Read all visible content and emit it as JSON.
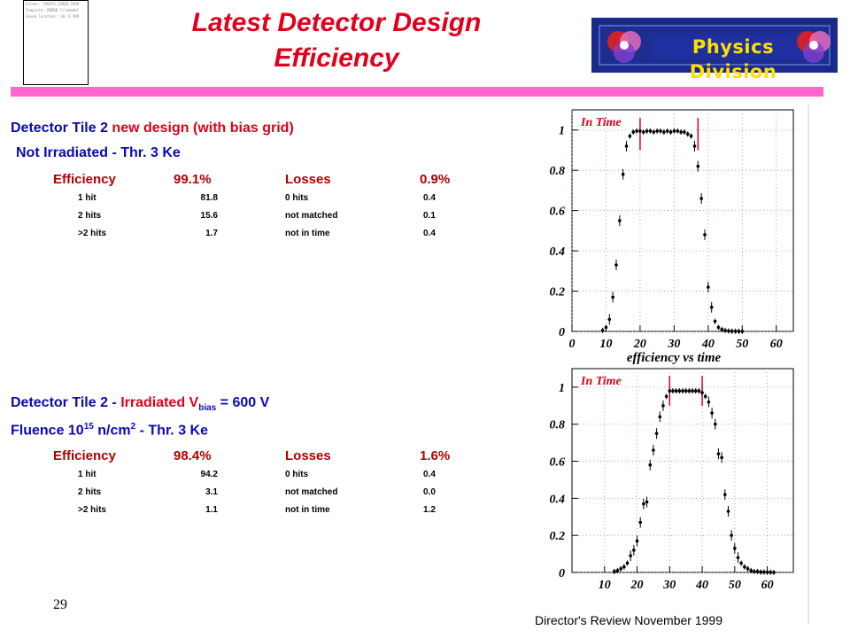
{
  "slide": {
    "title_line1": "Latest Detector Design",
    "title_line2": "Efficiency",
    "page_number": "29",
    "footer": "Director's Review November 1999",
    "logo_text": "Physics Division",
    "thumbnail_lines": [
      "Folder: TARATS_ISRED_1999",
      "Template: RB8BB Tilemodel",
      "Saved location: (B) 0.999"
    ]
  },
  "section1": {
    "heading_prefix": "Detector Tile 2 ",
    "heading_red": "new design (with bias grid)",
    "subheading": "Not Irradiated - Thr. 3 Ke",
    "eff_label": "Efficiency",
    "eff_value": "99.1%",
    "loss_label": "Losses",
    "loss_value": "0.9%",
    "rows": [
      {
        "a": "1 hit",
        "b": "81.8",
        "c": "0 hits",
        "d": "0.4"
      },
      {
        "a": "2 hits",
        "b": "15.6",
        "c": "not matched",
        "d": "0.1"
      },
      {
        "a": ">2 hits",
        "b": "1.7",
        "c": "not in time",
        "d": "0.4"
      }
    ]
  },
  "section2": {
    "heading_prefix": "Detector Tile 2 - ",
    "heading_red": "Irradiated V",
    "heading_sub": "bias",
    "heading_suffix": " = 600 V",
    "fluence_prefix": "Fluence 10",
    "fluence_sup": "15",
    "fluence_mid": " n/cm",
    "fluence_sup2": "2",
    "fluence_suffix": " - Thr. 3 Ke",
    "eff_label": "Efficiency",
    "eff_value": "98.4%",
    "loss_label": "Losses",
    "loss_value": "1.6%",
    "rows": [
      {
        "a": "1 hit",
        "b": "94.2",
        "c": "0 hits",
        "d": "0.4"
      },
      {
        "a": "2 hits",
        "b": "3.1",
        "c": "not matched",
        "d": "0.0"
      },
      {
        "a": ">2 hits",
        "b": "1.1",
        "c": "not in time",
        "d": "1.2"
      }
    ]
  },
  "chart_data": [
    {
      "type": "scatter",
      "title": "",
      "annotation": "In Time",
      "xlabel": "efficiency vs time",
      "ylabel": "",
      "xlim": [
        0,
        65
      ],
      "ylim": [
        0,
        1.1
      ],
      "x_ticks": [
        "0",
        "10",
        "20",
        "30",
        "40",
        "50",
        "60"
      ],
      "y_ticks": [
        "0",
        "0.2",
        "0.4",
        "0.6",
        "0.8",
        "1"
      ],
      "in_time_window": [
        20,
        37
      ],
      "grid": true,
      "series": [
        {
          "x": [
            9,
            10,
            11,
            12,
            13,
            14,
            15,
            16,
            17,
            18,
            19,
            20,
            21,
            22,
            23,
            24,
            25,
            26,
            27,
            28,
            29,
            30,
            31,
            32,
            33,
            34,
            35,
            36,
            37,
            38,
            39,
            40,
            41,
            42,
            43,
            44,
            45,
            46,
            47,
            48,
            49,
            50
          ],
          "y": [
            0.005,
            0.02,
            0.06,
            0.17,
            0.33,
            0.55,
            0.78,
            0.92,
            0.97,
            0.99,
            0.995,
            0.995,
            0.99,
            0.995,
            0.995,
            0.99,
            0.995,
            0.995,
            0.99,
            0.995,
            0.99,
            0.995,
            0.995,
            0.99,
            0.99,
            0.98,
            0.97,
            0.92,
            0.82,
            0.66,
            0.48,
            0.22,
            0.12,
            0.05,
            0.02,
            0.01,
            0.005,
            0.002,
            0.001,
            0.001,
            0.0005,
            0.0
          ]
        }
      ]
    },
    {
      "type": "scatter",
      "title": "",
      "annotation": "In Time",
      "xlabel": "",
      "ylabel": "",
      "xlim": [
        0,
        68
      ],
      "ylim": [
        0,
        1.1
      ],
      "x_ticks": [
        "10",
        "20",
        "30",
        "40",
        "50",
        "60"
      ],
      "y_ticks": [
        "0",
        "0.2",
        "0.4",
        "0.6",
        "0.8",
        "1"
      ],
      "in_time_window": [
        30,
        40
      ],
      "grid": true,
      "series": [
        {
          "x": [
            13,
            14,
            15,
            16,
            17,
            18,
            19,
            20,
            21,
            22,
            23,
            24,
            25,
            26,
            27,
            28,
            29,
            30,
            31,
            32,
            33,
            34,
            35,
            36,
            37,
            38,
            39,
            40,
            41,
            42,
            43,
            44,
            45,
            46,
            47,
            48,
            49,
            50,
            51,
            52,
            53,
            54,
            55,
            56,
            57,
            58,
            59,
            60,
            61,
            62
          ],
          "y": [
            0.005,
            0.01,
            0.02,
            0.03,
            0.05,
            0.09,
            0.12,
            0.17,
            0.27,
            0.37,
            0.38,
            0.58,
            0.66,
            0.75,
            0.84,
            0.9,
            0.95,
            0.98,
            0.98,
            0.98,
            0.98,
            0.98,
            0.98,
            0.98,
            0.98,
            0.98,
            0.98,
            0.97,
            0.95,
            0.92,
            0.86,
            0.8,
            0.64,
            0.62,
            0.42,
            0.33,
            0.2,
            0.13,
            0.08,
            0.05,
            0.03,
            0.02,
            0.01,
            0.005,
            0.005,
            0.002,
            0.002,
            0.001,
            0.001,
            0.0
          ]
        }
      ]
    }
  ]
}
